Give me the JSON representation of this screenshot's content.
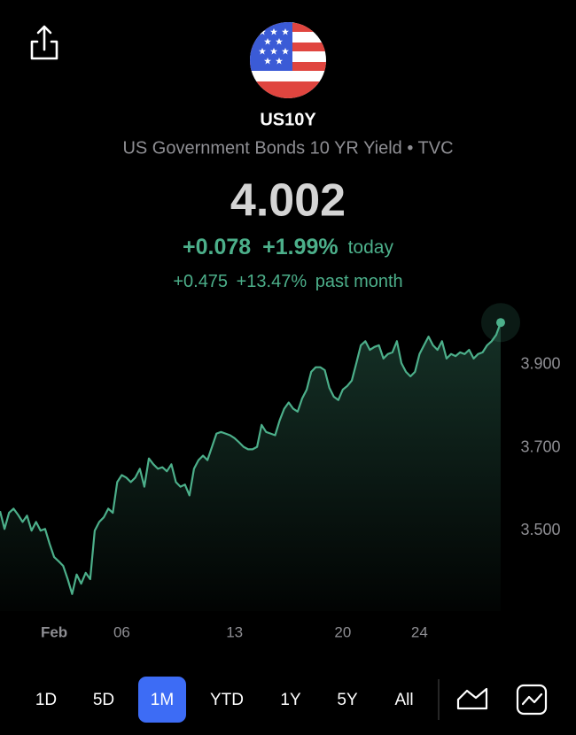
{
  "header": {
    "symbol": "US10Y",
    "name": "US Government Bonds 10 YR Yield • TVC",
    "price": "4.002",
    "change": "+0.078",
    "change_pct": "+1.99%",
    "change_period": "today",
    "month_change": "+0.475",
    "month_change_pct": "+13.47%",
    "month_period": "past month"
  },
  "chart_data": {
    "type": "area",
    "color": "#4caf8a",
    "values": [
      3.547,
      3.504,
      3.543,
      3.553,
      3.538,
      3.521,
      3.536,
      3.5,
      3.521,
      3.5,
      3.504,
      3.468,
      3.436,
      3.426,
      3.415,
      3.383,
      3.347,
      3.394,
      3.372,
      3.398,
      3.383,
      3.5,
      3.521,
      3.532,
      3.553,
      3.543,
      3.617,
      3.634,
      3.628,
      3.617,
      3.628,
      3.649,
      3.606,
      3.674,
      3.66,
      3.649,
      3.653,
      3.643,
      3.66,
      3.617,
      3.606,
      3.611,
      3.585,
      3.649,
      3.67,
      3.681,
      3.67,
      3.702,
      3.734,
      3.738,
      3.734,
      3.73,
      3.723,
      3.713,
      3.702,
      3.696,
      3.696,
      3.702,
      3.755,
      3.738,
      3.734,
      3.73,
      3.766,
      3.794,
      3.809,
      3.794,
      3.787,
      3.819,
      3.84,
      3.883,
      3.894,
      3.894,
      3.887,
      3.845,
      3.823,
      3.815,
      3.84,
      3.849,
      3.862,
      3.904,
      3.947,
      3.957,
      3.936,
      3.943,
      3.947,
      3.915,
      3.926,
      3.93,
      3.957,
      3.904,
      3.883,
      3.872,
      3.883,
      3.926,
      3.947,
      3.968,
      3.947,
      3.936,
      3.957,
      3.915,
      3.926,
      3.921,
      3.93,
      3.926,
      3.936,
      3.915,
      3.926,
      3.93,
      3.947,
      3.957,
      3.972,
      4.002
    ],
    "xlim": [
      0,
      111
    ],
    "xticks": [
      {
        "value": 12,
        "label": "Feb"
      },
      {
        "value": 27,
        "label": "06"
      },
      {
        "value": 52,
        "label": "13"
      },
      {
        "value": 76,
        "label": "20"
      },
      {
        "value": 93,
        "label": "24"
      }
    ],
    "ylim": [
      3.306,
      4.043
    ],
    "yticks": [
      {
        "value": 3.5,
        "label": "3.500"
      },
      {
        "value": 3.7,
        "label": "3.700"
      },
      {
        "value": 3.9,
        "label": "3.900"
      }
    ]
  },
  "timeframes": [
    "1D",
    "5D",
    "1M",
    "YTD",
    "1Y",
    "5Y",
    "All"
  ],
  "selected_timeframe": 2
}
